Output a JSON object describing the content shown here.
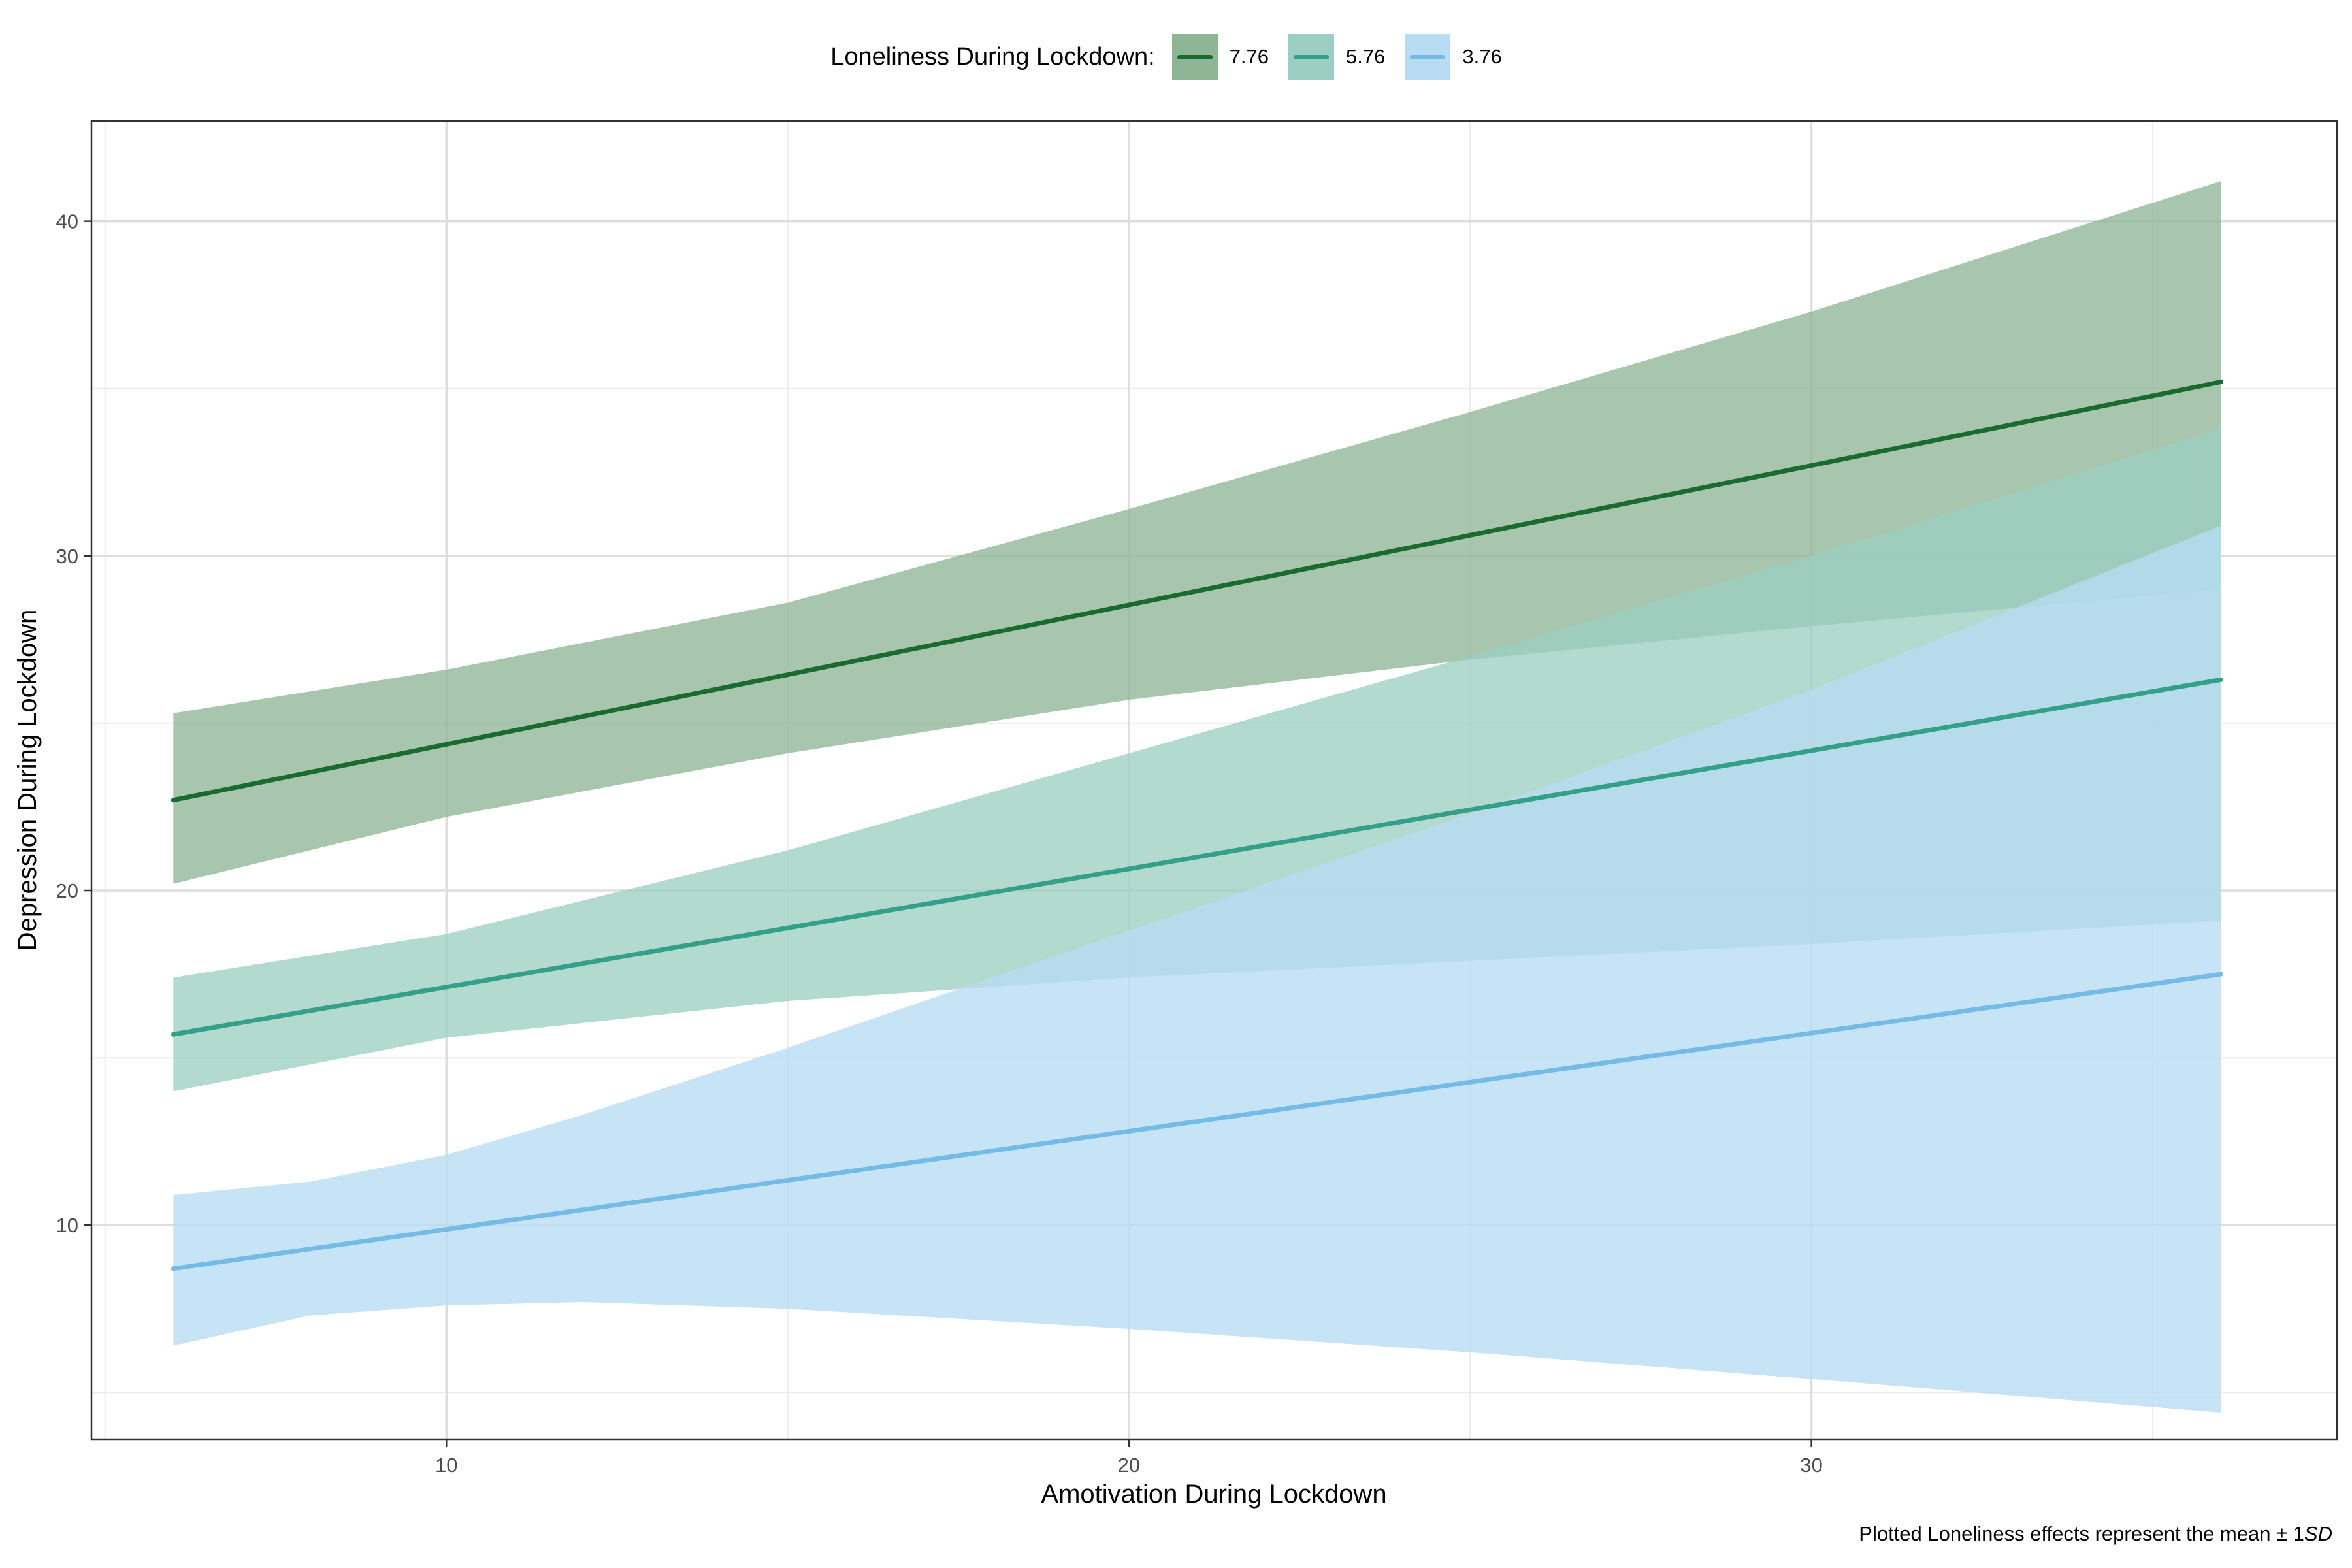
{
  "chart_data": {
    "type": "line",
    "xlabel": "Amotivation During Lockdown",
    "ylabel": "Depression During Lockdown",
    "xlim": [
      4.8,
      37.7
    ],
    "ylim": [
      3.6,
      43.0
    ],
    "x_ticks": [
      10,
      20,
      30
    ],
    "y_ticks": [
      10,
      20,
      30,
      40
    ],
    "grid": true,
    "legend_position": "top",
    "legend_title": "Loneliness During Lockdown:",
    "caption_prefix": "Plotted Loneliness effects represent the mean ± 1",
    "caption_suffix": "SD",
    "series": [
      {
        "name": "7.76",
        "color": "#1a6b2f",
        "fill": "#8fb597",
        "x": [
          6,
          36
        ],
        "y": [
          22.7,
          35.2
        ],
        "band_x": [
          6,
          10,
          15,
          20,
          25,
          30,
          36
        ],
        "band_lower": [
          20.2,
          22.2,
          24.1,
          25.7,
          26.9,
          27.9,
          29.0
        ],
        "band_upper": [
          25.3,
          26.6,
          28.6,
          31.4,
          34.3,
          37.3,
          41.2
        ]
      },
      {
        "name": "5.76",
        "color": "#35a088",
        "fill": "#9ccfc2",
        "x": [
          6,
          36
        ],
        "y": [
          15.7,
          26.3
        ],
        "band_x": [
          6,
          10,
          15,
          20,
          25,
          30,
          36
        ],
        "band_lower": [
          14.0,
          15.6,
          16.7,
          17.4,
          17.9,
          18.4,
          19.1
        ],
        "band_upper": [
          17.4,
          18.7,
          21.2,
          24.1,
          27.0,
          30.0,
          33.8
        ]
      },
      {
        "name": "3.76",
        "color": "#74bbe6",
        "fill": "#b7dcf3",
        "x": [
          6,
          36
        ],
        "y": [
          8.7,
          17.5
        ],
        "band_x": [
          6,
          8,
          10,
          12,
          15,
          20,
          25,
          30,
          36
        ],
        "band_lower": [
          6.4,
          7.3,
          7.6,
          7.7,
          7.5,
          6.9,
          6.2,
          5.4,
          4.4
        ],
        "band_upper": [
          10.9,
          11.3,
          12.1,
          13.3,
          15.3,
          18.8,
          22.3,
          26.0,
          30.9
        ]
      }
    ]
  }
}
